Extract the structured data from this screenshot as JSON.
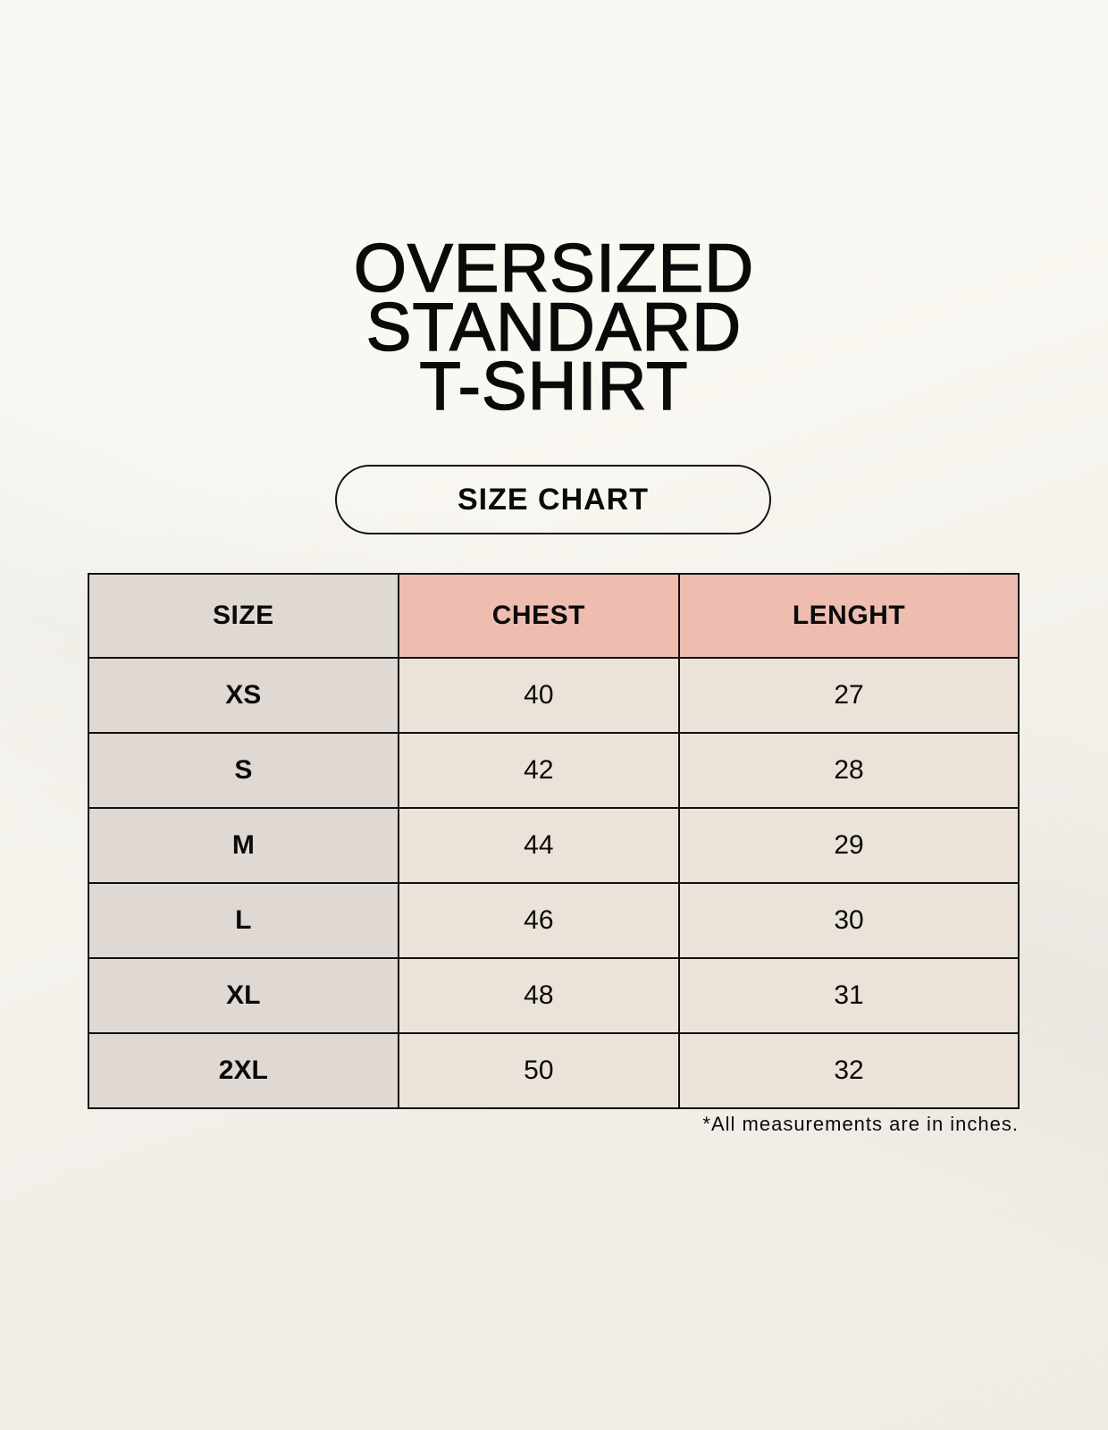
{
  "title_lines": [
    "OVERSIZED",
    "STANDARD",
    "T-SHIRT"
  ],
  "badge": "SIZE CHART",
  "table": {
    "headers": [
      "SIZE",
      "CHEST",
      "LENGHT"
    ],
    "rows": [
      [
        "XS",
        "40",
        "27"
      ],
      [
        "S",
        "42",
        "28"
      ],
      [
        "M",
        "44",
        "29"
      ],
      [
        "L",
        "46",
        "30"
      ],
      [
        "XL",
        "48",
        "31"
      ],
      [
        "2XL",
        "50",
        "32"
      ]
    ]
  },
  "footnote": "*All measurements are in inches.",
  "colors": {
    "size_column": "#e0d9d3",
    "header_accent": "#eebdaf",
    "value_cells": "#ebe3d9"
  }
}
